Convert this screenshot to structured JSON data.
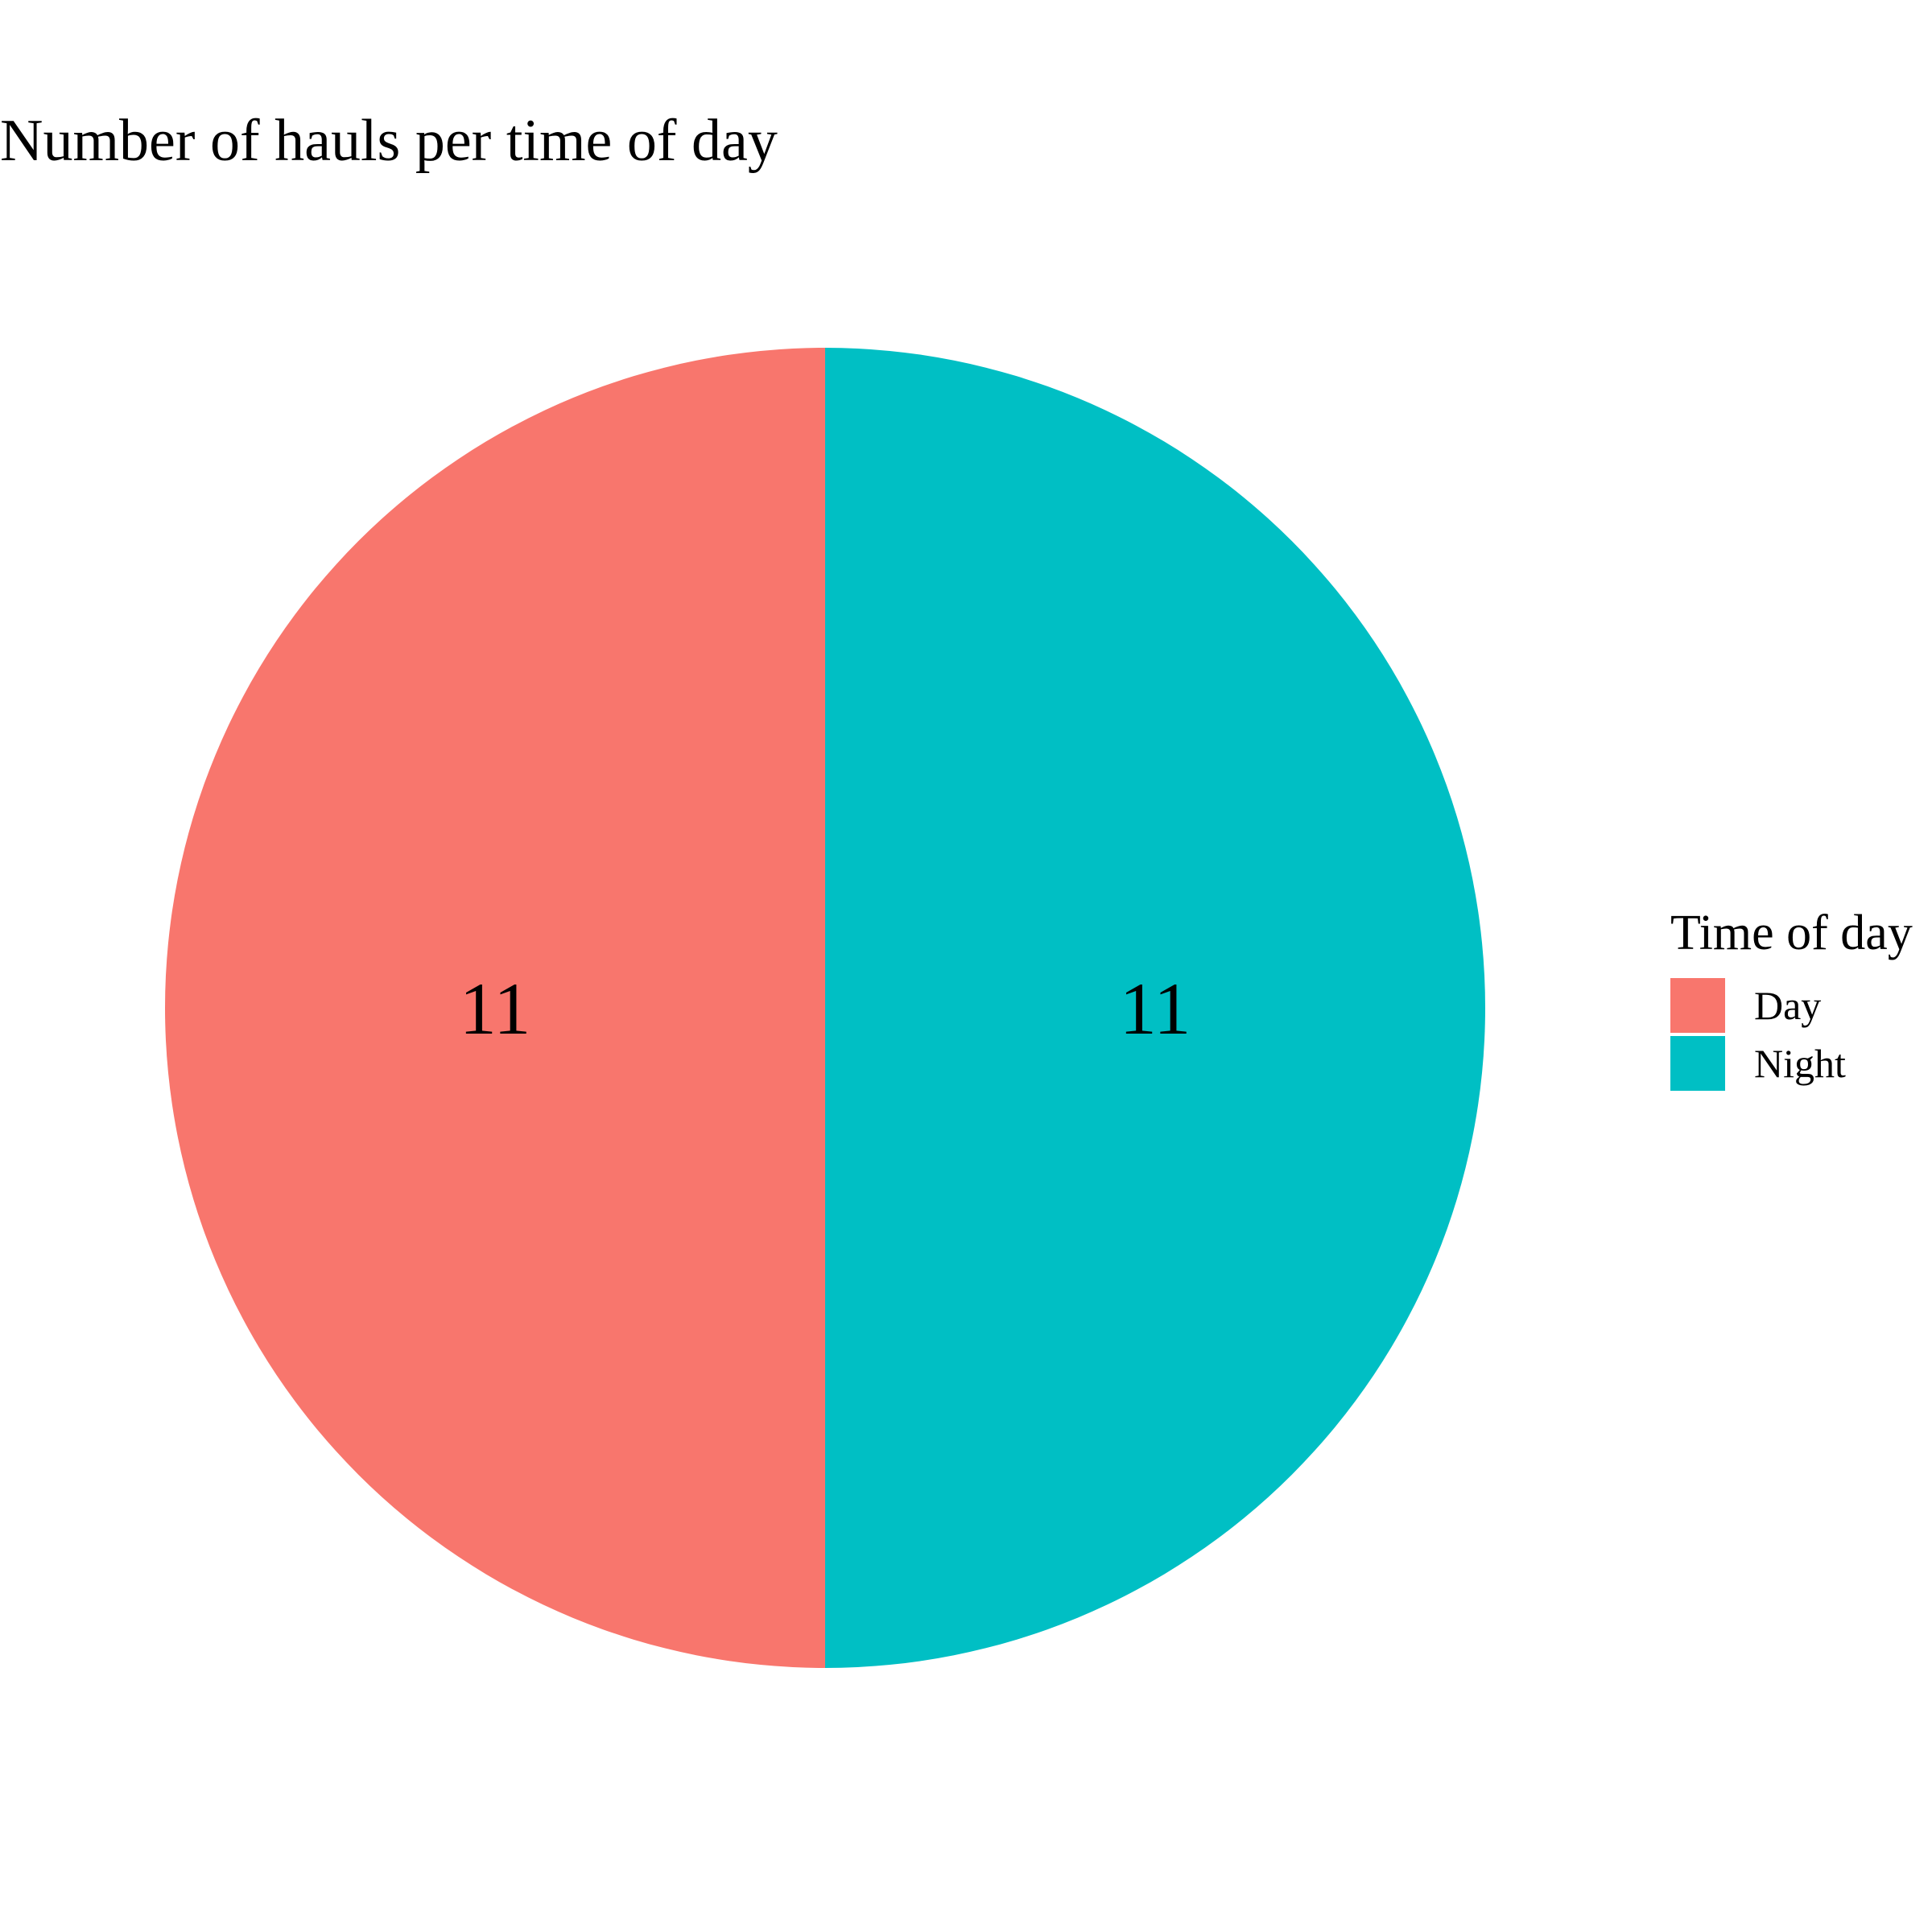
{
  "chart_data": {
    "type": "pie",
    "title": "Number of hauls per time of day",
    "legend": {
      "title": "Time of day",
      "placement": "right"
    },
    "categories": [
      "Day",
      "Night"
    ],
    "values": [
      11,
      11
    ],
    "data_labels": [
      "11",
      "11"
    ],
    "colors": [
      "#F8766D",
      "#00BFC4"
    ]
  }
}
